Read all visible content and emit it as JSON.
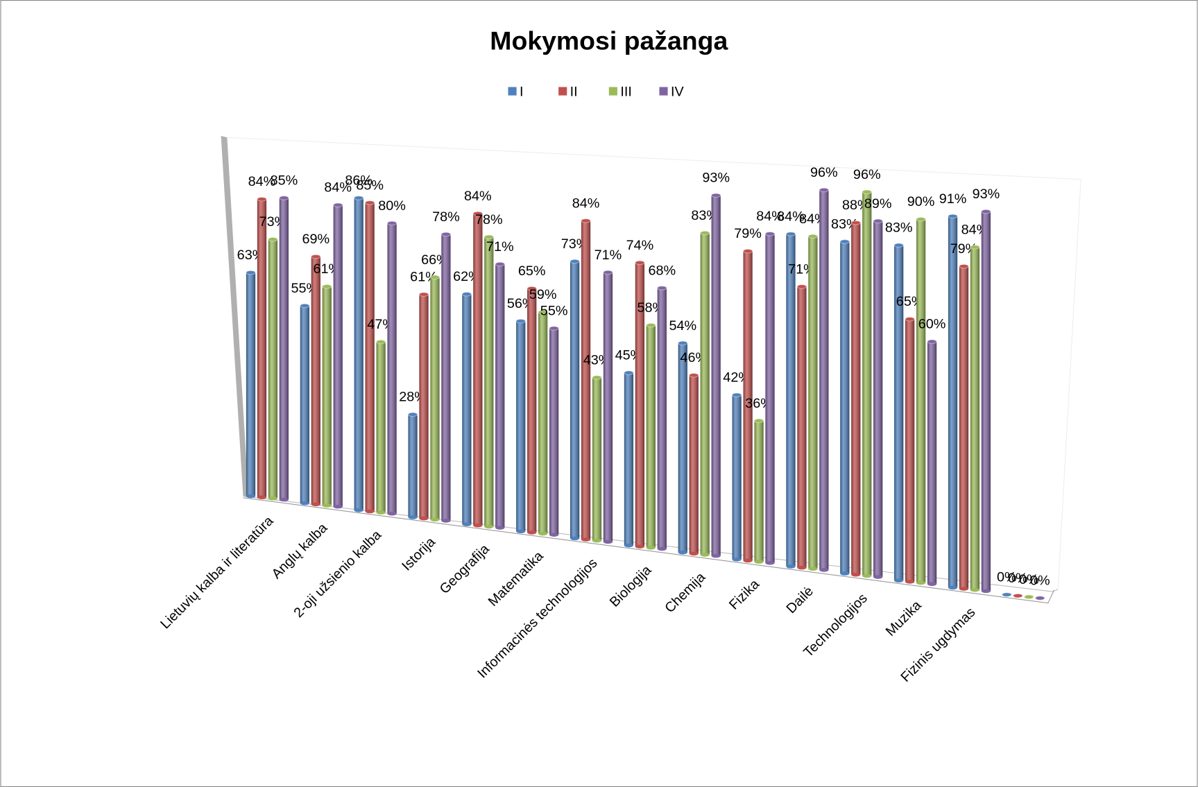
{
  "chart_data": {
    "type": "bar3d",
    "title": "Mokymosi pažanga",
    "categories": [
      "Lietuvių kalba ir literatūra",
      "Anglų kalba",
      "2-oji užsienio kalba",
      "Istorija",
      "Geografija",
      "Matematika",
      "Informacinės technologijos",
      "Biologija",
      "Chemija",
      "Fizika",
      "Dailė",
      "Technologijos",
      "Muzika",
      "Fizinis ugdymas",
      null
    ],
    "series": [
      {
        "name": "I",
        "color": "#4f81bd",
        "values": [
          63,
          55,
          86,
          28,
          62,
          56,
          73,
          45,
          54,
          42,
          84,
          83,
          83,
          91,
          0
        ],
        "value_labels": [
          "63%",
          "55%",
          "86%",
          "28%",
          "62%",
          "56%",
          "73%",
          "45%",
          "54%",
          "42%",
          "84%",
          "83%",
          "83%",
          "91%",
          "0%"
        ]
      },
      {
        "name": "II",
        "color": "#c0504d",
        "values": [
          84,
          69,
          85,
          61,
          84,
          65,
          84,
          74,
          46,
          79,
          71,
          88,
          65,
          79,
          0
        ],
        "value_labels": [
          "84%",
          "69%",
          "85%",
          "61%",
          "84%",
          "65%",
          "84%",
          "74%",
          "46%",
          "79%",
          "71%",
          "88%",
          "65%",
          "79%",
          "0%"
        ]
      },
      {
        "name": "III",
        "color": "#9bbb59",
        "values": [
          73,
          61,
          47,
          66,
          78,
          59,
          43,
          58,
          83,
          36,
          84,
          96,
          90,
          84,
          0
        ],
        "value_labels": [
          "73%",
          "61%",
          "47%",
          "66%",
          "78%",
          "59%",
          "43%",
          "58%",
          "83%",
          "36%",
          "84%",
          "96%",
          "90%",
          "84%",
          "0%"
        ]
      },
      {
        "name": "IV",
        "color": "#8064a2",
        "values": [
          85,
          84,
          80,
          78,
          71,
          55,
          71,
          68,
          93,
          84,
          96,
          89,
          60,
          93,
          0
        ],
        "value_labels": [
          "85%",
          "84%",
          "80%",
          "78%",
          "71%",
          "55%",
          "71%",
          "68%",
          "93%",
          "84%",
          "96%",
          "89%",
          "60%",
          "93%",
          "0%"
        ]
      }
    ],
    "ylim": [
      0,
      100
    ],
    "legend": "top"
  }
}
